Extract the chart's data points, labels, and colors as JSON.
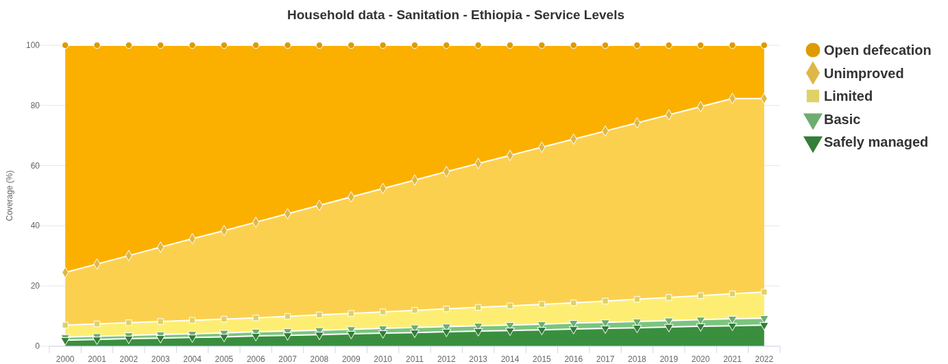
{
  "chart_data": {
    "type": "area",
    "title": "Household data - Sanitation - Ethiopia - Service Levels",
    "ylabel": "Coverage (%)",
    "stacked": true,
    "grid": "y",
    "legend": "right",
    "ylim": [
      0,
      100
    ],
    "yticks": [
      0,
      20,
      40,
      60,
      80,
      100
    ],
    "categories": [
      "2000",
      "2001",
      "2002",
      "2003",
      "2004",
      "2005",
      "2006",
      "2007",
      "2008",
      "2009",
      "2010",
      "2011",
      "2012",
      "2013",
      "2014",
      "2015",
      "2016",
      "2017",
      "2018",
      "2019",
      "2020",
      "2021",
      "2022"
    ],
    "series": [
      {
        "name": "Safely managed",
        "color": "#3a8f3f",
        "marker": "triangle",
        "values": [
          2.0,
          2.2,
          2.5,
          2.7,
          2.9,
          3.1,
          3.4,
          3.6,
          3.8,
          4.1,
          4.3,
          4.5,
          4.8,
          5.0,
          5.2,
          5.4,
          5.7,
          5.9,
          6.1,
          6.4,
          6.6,
          6.8,
          7.0
        ]
      },
      {
        "name": "Basic",
        "color": "#7bc47f",
        "marker": "triangle",
        "values": [
          1.0,
          1.1,
          1.1,
          1.2,
          1.2,
          1.3,
          1.4,
          1.4,
          1.5,
          1.5,
          1.6,
          1.7,
          1.7,
          1.8,
          1.8,
          1.9,
          2.0,
          2.0,
          2.1,
          2.1,
          2.2,
          2.3,
          2.3
        ]
      },
      {
        "name": "Limited",
        "color": "#fdee73",
        "marker": "square",
        "values": [
          4.0,
          4.1,
          4.2,
          4.3,
          4.5,
          4.6,
          4.6,
          4.9,
          5.1,
          5.3,
          5.5,
          5.7,
          5.9,
          6.1,
          6.4,
          6.6,
          6.7,
          7.1,
          7.4,
          7.7,
          8.0,
          8.3,
          8.7
        ]
      },
      {
        "name": "Unimproved",
        "color": "#fcd04f",
        "marker": "diamond",
        "values": [
          17.5,
          19.9,
          22.3,
          24.7,
          27.1,
          29.4,
          31.8,
          34.1,
          36.4,
          38.7,
          41.0,
          43.3,
          45.6,
          47.8,
          50.0,
          52.2,
          54.4,
          56.5,
          58.6,
          60.7,
          62.8,
          64.9,
          64.3
        ]
      },
      {
        "name": "Open defecation",
        "color": "#fbb000",
        "marker": "circle",
        "values": [
          75.5,
          72.7,
          69.9,
          67.1,
          64.3,
          61.6,
          58.8,
          56.0,
          53.2,
          50.4,
          47.6,
          44.8,
          42.0,
          39.3,
          36.6,
          33.9,
          31.2,
          28.5,
          25.8,
          23.1,
          20.4,
          17.7,
          17.7
        ]
      }
    ]
  }
}
